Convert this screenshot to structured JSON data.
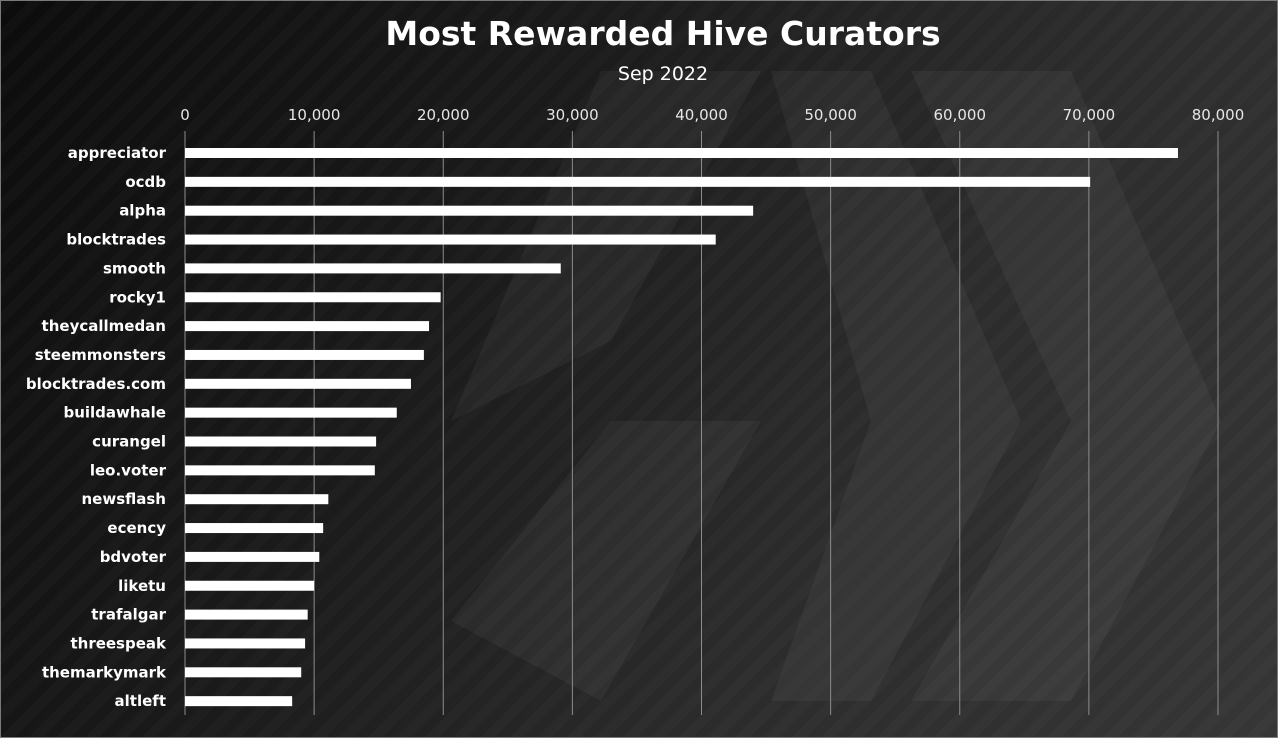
{
  "chart_data": {
    "type": "bar",
    "orientation": "horizontal",
    "title": "Most Rewarded Hive Curators",
    "subtitle": "Sep 2022",
    "categories": [
      "appreciator",
      "ocdb",
      "alpha",
      "blocktrades",
      "smooth",
      "rocky1",
      "theycallmedan",
      "steemmonsters",
      "blocktrades.com",
      "buildawhale",
      "curangel",
      "leo.voter",
      "newsflash",
      "ecency",
      "bdvoter",
      "liketu",
      "trafalgar",
      "threespeak",
      "themarkymark",
      "altleft"
    ],
    "values": [
      76900,
      70100,
      44000,
      41100,
      29100,
      19800,
      18900,
      18500,
      17500,
      16400,
      14800,
      14700,
      11100,
      10700,
      10400,
      10000,
      9500,
      9300,
      9000,
      8300
    ],
    "xlim": [
      0,
      80000
    ],
    "x_ticks": [
      0,
      10000,
      20000,
      30000,
      40000,
      50000,
      60000,
      70000,
      80000
    ],
    "x_tick_labels": [
      "0",
      "10,000",
      "20,000",
      "30,000",
      "40,000",
      "50,000",
      "60,000",
      "70,000",
      "80,000"
    ],
    "x_axis_position": "top",
    "grid": true,
    "colors": {
      "bar": "#ffffff",
      "background": "#1a1a1a",
      "grid": "#8c8c8c"
    }
  }
}
